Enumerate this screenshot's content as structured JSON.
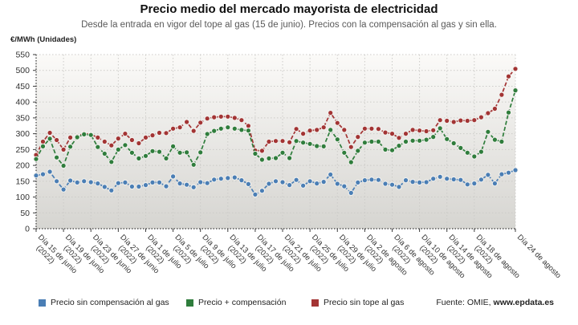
{
  "header": {
    "title": "Precio medio del mercado mayorista de electricidad",
    "subtitle": "Desde la entrada en vigor del tope al gas (15 de junio). Precios con la compensación al gas y sin ella."
  },
  "footer": {
    "source_prefix": "Fuente: OMIE, ",
    "source_site": "www.epdata.es"
  },
  "chart_data": {
    "type": "line",
    "title": "Precio medio del mercado mayorista de electricidad",
    "ylabel": "€/MWh (Unidades)",
    "xlabel": "",
    "ylim": [
      0,
      550
    ],
    "ytick_step": 50,
    "grid": true,
    "legend_position": "bottom",
    "plot_bg_top": "#fbfaf8",
    "plot_bg_bottom": "#d6d5d1",
    "grid_color": "#cccbc8",
    "axis_color": "#3a3a3a",
    "x_tick_labels": [
      {
        "index": 0,
        "line1": "Día 15 de junio",
        "line2": "(2022)"
      },
      {
        "index": 4,
        "line1": "Día 19 de junio",
        "line2": "(2022)"
      },
      {
        "index": 8,
        "line1": "Día 23 de junio",
        "line2": "(2022)"
      },
      {
        "index": 12,
        "line1": "Día 27 de junio",
        "line2": "(2022)"
      },
      {
        "index": 16,
        "line1": "Día 1 de julio",
        "line2": "(2022)"
      },
      {
        "index": 20,
        "line1": "Día 5 de julio",
        "line2": "(2022)"
      },
      {
        "index": 24,
        "line1": "Día 9 de julio",
        "line2": "(2022)"
      },
      {
        "index": 28,
        "line1": "Día 13 de julio",
        "line2": "(2022)"
      },
      {
        "index": 32,
        "line1": "Día 17 de julio",
        "line2": "(2022)"
      },
      {
        "index": 36,
        "line1": "Día 21 de julio",
        "line2": "(2022)"
      },
      {
        "index": 40,
        "line1": "Día 25 de julio",
        "line2": "(2022)"
      },
      {
        "index": 44,
        "line1": "Día 29 de julio",
        "line2": "(2022)"
      },
      {
        "index": 48,
        "line1": "Día 2 de agosto",
        "line2": "(2022)"
      },
      {
        "index": 52,
        "line1": "Día 6 de agosto",
        "line2": "(2022)"
      },
      {
        "index": 56,
        "line1": "Día 10 de agosto",
        "line2": "(2022)"
      },
      {
        "index": 60,
        "line1": "Día 14 de agosto",
        "line2": "(2022)"
      },
      {
        "index": 64,
        "line1": "Día 18 de agosto",
        "line2": "(2022)"
      },
      {
        "index": 70,
        "line1": "Día 24 de agosto",
        "line2": ""
      }
    ],
    "categories": [
      "2022-06-15",
      "2022-06-16",
      "2022-06-17",
      "2022-06-18",
      "2022-06-19",
      "2022-06-20",
      "2022-06-21",
      "2022-06-22",
      "2022-06-23",
      "2022-06-24",
      "2022-06-25",
      "2022-06-26",
      "2022-06-27",
      "2022-06-28",
      "2022-06-29",
      "2022-06-30",
      "2022-07-01",
      "2022-07-02",
      "2022-07-03",
      "2022-07-04",
      "2022-07-05",
      "2022-07-06",
      "2022-07-07",
      "2022-07-08",
      "2022-07-09",
      "2022-07-10",
      "2022-07-11",
      "2022-07-12",
      "2022-07-13",
      "2022-07-14",
      "2022-07-15",
      "2022-07-16",
      "2022-07-17",
      "2022-07-18",
      "2022-07-19",
      "2022-07-20",
      "2022-07-21",
      "2022-07-22",
      "2022-07-23",
      "2022-07-24",
      "2022-07-25",
      "2022-07-26",
      "2022-07-27",
      "2022-07-28",
      "2022-07-29",
      "2022-07-30",
      "2022-07-31",
      "2022-08-01",
      "2022-08-02",
      "2022-08-03",
      "2022-08-04",
      "2022-08-05",
      "2022-08-06",
      "2022-08-07",
      "2022-08-08",
      "2022-08-09",
      "2022-08-10",
      "2022-08-11",
      "2022-08-12",
      "2022-08-13",
      "2022-08-14",
      "2022-08-15",
      "2022-08-16",
      "2022-08-17",
      "2022-08-18",
      "2022-08-19",
      "2022-08-20",
      "2022-08-21",
      "2022-08-22",
      "2022-08-23",
      "2022-08-24"
    ],
    "series": [
      {
        "name": "Precio sin compensación al gas",
        "color": "#4a7eb5",
        "values": [
          168,
          172,
          180,
          150,
          124,
          152,
          146,
          150,
          147,
          143,
          132,
          121,
          144,
          146,
          133,
          133,
          138,
          146,
          146,
          134,
          165,
          143,
          139,
          131,
          147,
          144,
          155,
          158,
          160,
          162,
          153,
          141,
          108,
          120,
          142,
          150,
          147,
          138,
          154,
          136,
          150,
          143,
          148,
          171,
          142,
          134,
          113,
          146,
          153,
          155,
          154,
          142,
          139,
          132,
          153,
          148,
          146,
          147,
          158,
          164,
          158,
          156,
          154,
          140,
          143,
          155,
          170,
          143,
          172,
          177,
          185
        ]
      },
      {
        "name": "Precio + compensación",
        "color": "#2f7d3c",
        "values": [
          220,
          260,
          284,
          225,
          199,
          259,
          289,
          298,
          296,
          258,
          237,
          211,
          250,
          264,
          240,
          222,
          230,
          245,
          243,
          222,
          260,
          240,
          241,
          202,
          241,
          299,
          309,
          316,
          320,
          316,
          312,
          310,
          237,
          218,
          222,
          223,
          240,
          223,
          277,
          272,
          268,
          261,
          260,
          312,
          282,
          240,
          210,
          246,
          272,
          275,
          275,
          250,
          248,
          262,
          275,
          278,
          278,
          281,
          290,
          317,
          283,
          270,
          255,
          240,
          228,
          243,
          306,
          281,
          275,
          367,
          437
        ]
      },
      {
        "name": "Precio sin tope al gas",
        "color": "#a33434",
        "values": [
          233,
          275,
          303,
          280,
          250,
          288,
          292,
          301,
          298,
          288,
          275,
          263,
          285,
          300,
          280,
          270,
          288,
          295,
          303,
          302,
          316,
          320,
          337,
          309,
          335,
          348,
          352,
          354,
          354,
          350,
          343,
          325,
          247,
          246,
          275,
          277,
          277,
          273,
          315,
          300,
          310,
          312,
          320,
          366,
          334,
          312,
          258,
          290,
          316,
          316,
          315,
          304,
          300,
          287,
          300,
          312,
          310,
          308,
          311,
          343,
          341,
          337,
          342,
          341,
          343,
          352,
          365,
          379,
          423,
          481,
          505
        ]
      }
    ]
  }
}
